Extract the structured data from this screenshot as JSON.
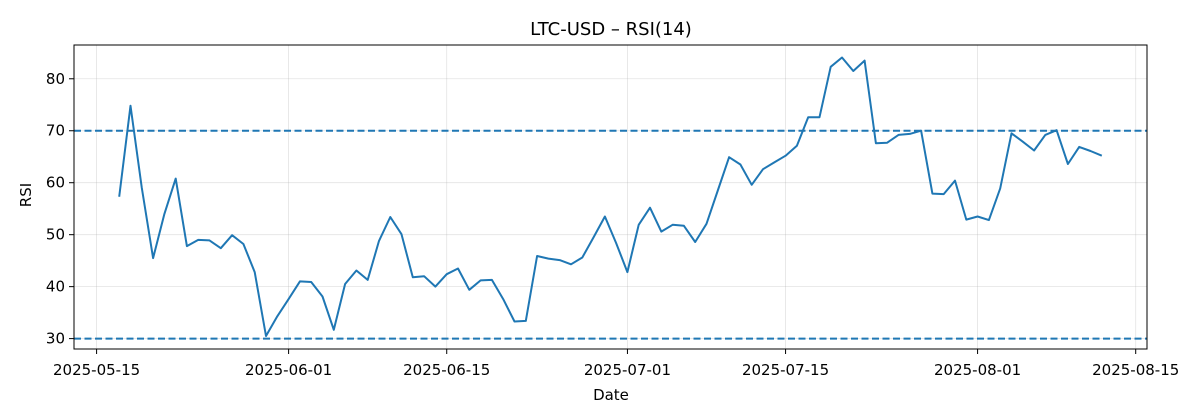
{
  "chart_data": {
    "type": "line",
    "title": "LTC-USD – RSI(14)",
    "xlabel": "Date",
    "ylabel": "RSI",
    "x_ticks": [
      "2025-05-15",
      "2025-06-01",
      "2025-06-15",
      "2025-07-01",
      "2025-07-15",
      "2025-08-01",
      "2025-08-15"
    ],
    "y_ticks": [
      30,
      40,
      50,
      60,
      70,
      80
    ],
    "xlim": [
      "2025-05-13",
      "2025-08-16"
    ],
    "ylim": [
      28,
      86.5
    ],
    "grid": true,
    "reference_lines": [
      70,
      30
    ],
    "series": [
      {
        "color": "#1f77b4",
        "x": [
          "2025-05-17",
          "2025-05-18",
          "2025-05-19",
          "2025-05-20",
          "2025-05-21",
          "2025-05-22",
          "2025-05-23",
          "2025-05-24",
          "2025-05-25",
          "2025-05-26",
          "2025-05-27",
          "2025-05-28",
          "2025-05-29",
          "2025-05-30",
          "2025-05-31",
          "2025-06-01",
          "2025-06-02",
          "2025-06-03",
          "2025-06-04",
          "2025-06-05",
          "2025-06-06",
          "2025-06-07",
          "2025-06-08",
          "2025-06-09",
          "2025-06-10",
          "2025-06-11",
          "2025-06-12",
          "2025-06-13",
          "2025-06-14",
          "2025-06-15",
          "2025-06-16",
          "2025-06-17",
          "2025-06-18",
          "2025-06-19",
          "2025-06-20",
          "2025-06-21",
          "2025-06-22",
          "2025-06-23",
          "2025-06-24",
          "2025-06-25",
          "2025-06-26",
          "2025-06-27",
          "2025-06-28",
          "2025-06-29",
          "2025-06-30",
          "2025-07-01",
          "2025-07-02",
          "2025-07-03",
          "2025-07-04",
          "2025-07-05",
          "2025-07-06",
          "2025-07-07",
          "2025-07-08",
          "2025-07-09",
          "2025-07-10",
          "2025-07-11",
          "2025-07-12",
          "2025-07-13",
          "2025-07-14",
          "2025-07-15",
          "2025-07-16",
          "2025-07-17",
          "2025-07-18",
          "2025-07-19",
          "2025-07-20",
          "2025-07-21",
          "2025-07-22",
          "2025-07-23",
          "2025-07-24",
          "2025-07-25",
          "2025-07-26",
          "2025-07-27",
          "2025-07-28",
          "2025-07-29",
          "2025-07-30",
          "2025-07-31",
          "2025-08-01",
          "2025-08-02",
          "2025-08-03",
          "2025-08-04",
          "2025-08-05",
          "2025-08-06",
          "2025-08-07",
          "2025-08-08",
          "2025-08-09",
          "2025-08-10",
          "2025-08-11",
          "2025-08-12"
        ],
        "values": [
          57.3,
          74.8,
          59.0,
          45.5,
          54.0,
          60.8,
          47.8,
          49.0,
          48.9,
          47.4,
          49.9,
          48.2,
          42.8,
          30.5,
          34.3,
          37.6,
          41.0,
          40.9,
          38.1,
          31.7,
          40.5,
          43.1,
          41.3,
          48.8,
          53.4,
          50.1,
          41.8,
          42.0,
          40.0,
          42.4,
          43.5,
          39.4,
          41.2,
          41.3,
          37.6,
          33.3,
          33.4,
          45.9,
          45.4,
          45.1,
          44.3,
          45.6,
          49.5,
          53.5,
          48.4,
          42.8,
          51.9,
          55.2,
          50.6,
          51.9,
          51.7,
          48.6,
          52.1,
          58.5,
          64.9,
          63.5,
          59.6,
          62.6,
          63.9,
          65.2,
          67.1,
          72.6,
          72.6,
          82.3,
          84.1,
          81.5,
          83.5,
          67.6,
          67.7,
          69.2,
          69.4,
          70.0,
          57.9,
          57.8,
          60.4,
          52.9,
          53.5,
          52.8,
          58.9,
          69.5,
          67.9,
          66.2,
          69.2,
          70.1,
          63.6,
          66.9,
          66.1,
          65.2
        ]
      }
    ]
  }
}
